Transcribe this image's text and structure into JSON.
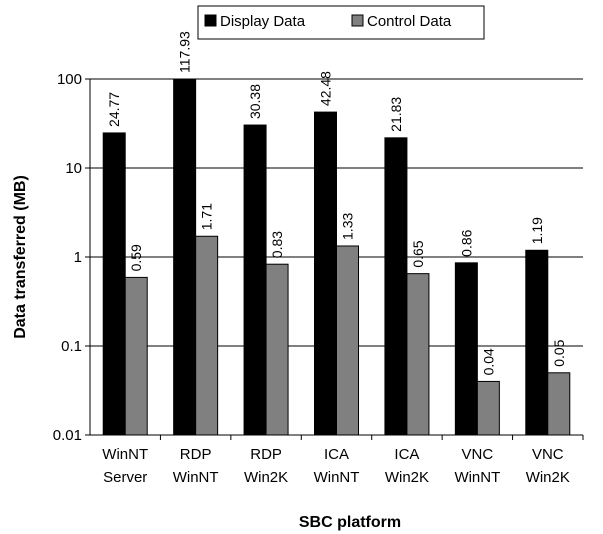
{
  "chart_data": {
    "type": "bar",
    "y_scale": "log",
    "ylim": [
      0.01,
      100
    ],
    "ylabel": "Data transferred (MB)",
    "xlabel": "SBC platform",
    "y_ticks": [
      "0.01",
      "0.1",
      "1",
      "10",
      "100"
    ],
    "categories": [
      [
        "WinNT",
        "Server"
      ],
      [
        "RDP",
        "WinNT"
      ],
      [
        "RDP",
        "Win2K"
      ],
      [
        "ICA",
        "WinNT"
      ],
      [
        "ICA",
        "Win2K"
      ],
      [
        "VNC",
        "WinNT"
      ],
      [
        "VNC",
        "Win2K"
      ]
    ],
    "series": [
      {
        "name": "Display Data",
        "color": "#000000",
        "values": [
          24.77,
          117.93,
          30.38,
          42.48,
          21.83,
          0.86,
          1.19
        ],
        "labels": [
          "24.77",
          "117.93",
          "30.38",
          "42.48",
          "21.83",
          "0.86",
          "1.19"
        ]
      },
      {
        "name": "Control Data",
        "color": "#808080",
        "values": [
          0.59,
          1.71,
          0.83,
          1.33,
          0.65,
          0.04,
          0.05
        ],
        "labels": [
          "0.59",
          "1.71",
          "0.83",
          "1.33",
          "0.65",
          "0.04",
          "0.05"
        ]
      }
    ],
    "grid": true,
    "legend_position": "top-center"
  }
}
